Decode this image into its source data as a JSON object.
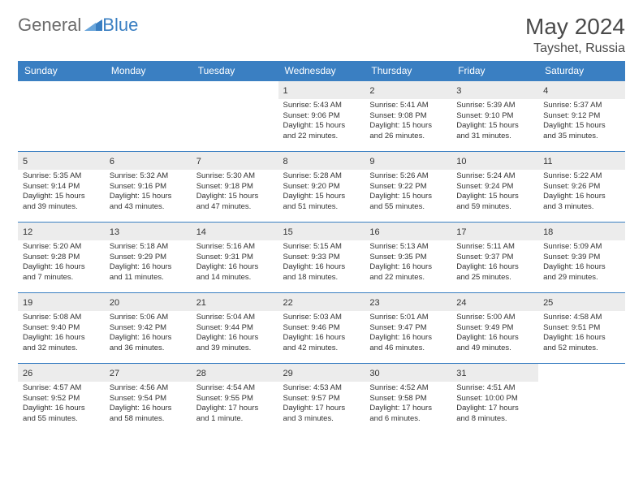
{
  "logo": {
    "part1": "General",
    "part2": "Blue"
  },
  "header": {
    "month_year": "May 2024",
    "location": "Tayshet, Russia"
  },
  "calendar": {
    "header_bg": "#3a7fc2",
    "header_text_color": "#ffffff",
    "daynum_bg": "#ececec",
    "border_color": "#3a7fc2",
    "days_of_week": [
      "Sunday",
      "Monday",
      "Tuesday",
      "Wednesday",
      "Thursday",
      "Friday",
      "Saturday"
    ],
    "weeks": [
      [
        {
          "n": "",
          "sr": "",
          "ss": "",
          "dl": ""
        },
        {
          "n": "",
          "sr": "",
          "ss": "",
          "dl": ""
        },
        {
          "n": "",
          "sr": "",
          "ss": "",
          "dl": ""
        },
        {
          "n": "1",
          "sr": "5:43 AM",
          "ss": "9:06 PM",
          "dl": "15 hours and 22 minutes."
        },
        {
          "n": "2",
          "sr": "5:41 AM",
          "ss": "9:08 PM",
          "dl": "15 hours and 26 minutes."
        },
        {
          "n": "3",
          "sr": "5:39 AM",
          "ss": "9:10 PM",
          "dl": "15 hours and 31 minutes."
        },
        {
          "n": "4",
          "sr": "5:37 AM",
          "ss": "9:12 PM",
          "dl": "15 hours and 35 minutes."
        }
      ],
      [
        {
          "n": "5",
          "sr": "5:35 AM",
          "ss": "9:14 PM",
          "dl": "15 hours and 39 minutes."
        },
        {
          "n": "6",
          "sr": "5:32 AM",
          "ss": "9:16 PM",
          "dl": "15 hours and 43 minutes."
        },
        {
          "n": "7",
          "sr": "5:30 AM",
          "ss": "9:18 PM",
          "dl": "15 hours and 47 minutes."
        },
        {
          "n": "8",
          "sr": "5:28 AM",
          "ss": "9:20 PM",
          "dl": "15 hours and 51 minutes."
        },
        {
          "n": "9",
          "sr": "5:26 AM",
          "ss": "9:22 PM",
          "dl": "15 hours and 55 minutes."
        },
        {
          "n": "10",
          "sr": "5:24 AM",
          "ss": "9:24 PM",
          "dl": "15 hours and 59 minutes."
        },
        {
          "n": "11",
          "sr": "5:22 AM",
          "ss": "9:26 PM",
          "dl": "16 hours and 3 minutes."
        }
      ],
      [
        {
          "n": "12",
          "sr": "5:20 AM",
          "ss": "9:28 PM",
          "dl": "16 hours and 7 minutes."
        },
        {
          "n": "13",
          "sr": "5:18 AM",
          "ss": "9:29 PM",
          "dl": "16 hours and 11 minutes."
        },
        {
          "n": "14",
          "sr": "5:16 AM",
          "ss": "9:31 PM",
          "dl": "16 hours and 14 minutes."
        },
        {
          "n": "15",
          "sr": "5:15 AM",
          "ss": "9:33 PM",
          "dl": "16 hours and 18 minutes."
        },
        {
          "n": "16",
          "sr": "5:13 AM",
          "ss": "9:35 PM",
          "dl": "16 hours and 22 minutes."
        },
        {
          "n": "17",
          "sr": "5:11 AM",
          "ss": "9:37 PM",
          "dl": "16 hours and 25 minutes."
        },
        {
          "n": "18",
          "sr": "5:09 AM",
          "ss": "9:39 PM",
          "dl": "16 hours and 29 minutes."
        }
      ],
      [
        {
          "n": "19",
          "sr": "5:08 AM",
          "ss": "9:40 PM",
          "dl": "16 hours and 32 minutes."
        },
        {
          "n": "20",
          "sr": "5:06 AM",
          "ss": "9:42 PM",
          "dl": "16 hours and 36 minutes."
        },
        {
          "n": "21",
          "sr": "5:04 AM",
          "ss": "9:44 PM",
          "dl": "16 hours and 39 minutes."
        },
        {
          "n": "22",
          "sr": "5:03 AM",
          "ss": "9:46 PM",
          "dl": "16 hours and 42 minutes."
        },
        {
          "n": "23",
          "sr": "5:01 AM",
          "ss": "9:47 PM",
          "dl": "16 hours and 46 minutes."
        },
        {
          "n": "24",
          "sr": "5:00 AM",
          "ss": "9:49 PM",
          "dl": "16 hours and 49 minutes."
        },
        {
          "n": "25",
          "sr": "4:58 AM",
          "ss": "9:51 PM",
          "dl": "16 hours and 52 minutes."
        }
      ],
      [
        {
          "n": "26",
          "sr": "4:57 AM",
          "ss": "9:52 PM",
          "dl": "16 hours and 55 minutes."
        },
        {
          "n": "27",
          "sr": "4:56 AM",
          "ss": "9:54 PM",
          "dl": "16 hours and 58 minutes."
        },
        {
          "n": "28",
          "sr": "4:54 AM",
          "ss": "9:55 PM",
          "dl": "17 hours and 1 minute."
        },
        {
          "n": "29",
          "sr": "4:53 AM",
          "ss": "9:57 PM",
          "dl": "17 hours and 3 minutes."
        },
        {
          "n": "30",
          "sr": "4:52 AM",
          "ss": "9:58 PM",
          "dl": "17 hours and 6 minutes."
        },
        {
          "n": "31",
          "sr": "4:51 AM",
          "ss": "10:00 PM",
          "dl": "17 hours and 8 minutes."
        },
        {
          "n": "",
          "sr": "",
          "ss": "",
          "dl": ""
        }
      ]
    ],
    "labels": {
      "sunrise": "Sunrise:",
      "sunset": "Sunset:",
      "daylight": "Daylight:"
    }
  }
}
